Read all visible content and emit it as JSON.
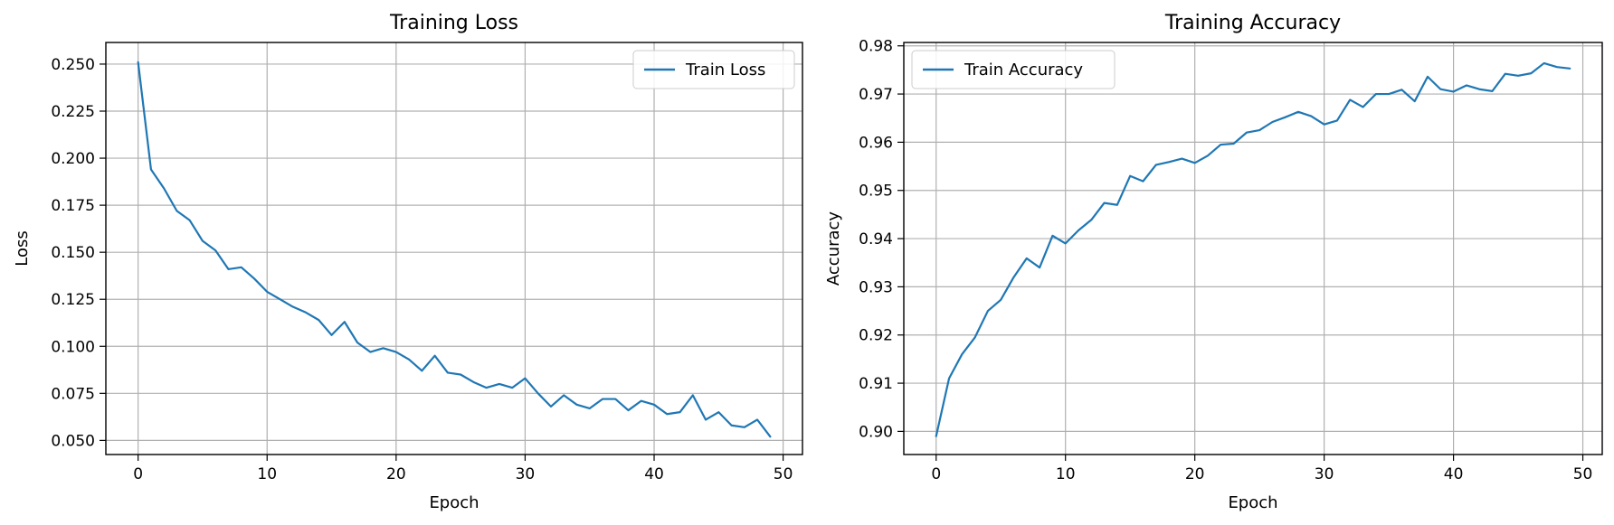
{
  "chart_data": [
    {
      "type": "line",
      "title": "Training Loss",
      "xlabel": "Epoch",
      "ylabel": "Loss",
      "xlim": [
        -2.5,
        51.5
      ],
      "ylim": [
        0.0425,
        0.2615
      ],
      "xticks": [
        0,
        10,
        20,
        30,
        40,
        50
      ],
      "xtick_labels": [
        "0",
        "10",
        "20",
        "30",
        "40",
        "50"
      ],
      "yticks": [
        0.05,
        0.075,
        0.1,
        0.125,
        0.15,
        0.175,
        0.2,
        0.225,
        0.25
      ],
      "ytick_labels": [
        "0.050",
        "0.075",
        "0.100",
        "0.125",
        "0.150",
        "0.175",
        "0.200",
        "0.225",
        "0.250"
      ],
      "grid": true,
      "legend_position": "upper right",
      "color": "#1f77b4",
      "x": [
        0,
        1,
        2,
        3,
        4,
        5,
        6,
        7,
        8,
        9,
        10,
        11,
        12,
        13,
        14,
        15,
        16,
        17,
        18,
        19,
        20,
        21,
        22,
        23,
        24,
        25,
        26,
        27,
        28,
        29,
        30,
        31,
        32,
        33,
        34,
        35,
        36,
        37,
        38,
        39,
        40,
        41,
        42,
        43,
        44,
        45,
        46,
        47,
        48,
        49
      ],
      "series": [
        {
          "name": "Train Loss",
          "values": [
            0.251,
            0.194,
            0.184,
            0.172,
            0.167,
            0.156,
            0.151,
            0.141,
            0.142,
            0.136,
            0.129,
            0.125,
            0.121,
            0.118,
            0.114,
            0.106,
            0.113,
            0.102,
            0.097,
            0.099,
            0.097,
            0.093,
            0.087,
            0.095,
            0.086,
            0.085,
            0.081,
            0.078,
            0.08,
            0.078,
            0.083,
            0.075,
            0.068,
            0.074,
            0.069,
            0.067,
            0.072,
            0.072,
            0.066,
            0.071,
            0.069,
            0.064,
            0.065,
            0.074,
            0.061,
            0.065,
            0.058,
            0.057,
            0.061,
            0.052
          ]
        }
      ]
    },
    {
      "type": "line",
      "title": "Training Accuracy",
      "xlabel": "Epoch",
      "ylabel": "Accuracy",
      "xlim": [
        -2.5,
        51.5
      ],
      "ylim": [
        0.8952,
        0.9807
      ],
      "xticks": [
        0,
        10,
        20,
        30,
        40,
        50
      ],
      "xtick_labels": [
        "0",
        "10",
        "20",
        "30",
        "40",
        "50"
      ],
      "yticks": [
        0.9,
        0.91,
        0.92,
        0.93,
        0.94,
        0.95,
        0.96,
        0.97,
        0.98
      ],
      "ytick_labels": [
        "0.90",
        "0.91",
        "0.92",
        "0.93",
        "0.94",
        "0.95",
        "0.96",
        "0.97",
        "0.98"
      ],
      "grid": true,
      "legend_position": "upper left",
      "color": "#1f77b4",
      "x": [
        0,
        1,
        2,
        3,
        4,
        5,
        6,
        7,
        8,
        9,
        10,
        11,
        12,
        13,
        14,
        15,
        16,
        17,
        18,
        19,
        20,
        21,
        22,
        23,
        24,
        25,
        26,
        27,
        28,
        29,
        30,
        31,
        32,
        33,
        34,
        35,
        36,
        37,
        38,
        39,
        40,
        41,
        42,
        43,
        44,
        45,
        46,
        47,
        48,
        49
      ],
      "series": [
        {
          "name": "Train Accuracy",
          "values": [
            0.899,
            0.911,
            0.916,
            0.9195,
            0.925,
            0.9273,
            0.932,
            0.9359,
            0.934,
            0.9406,
            0.939,
            0.9417,
            0.9439,
            0.9474,
            0.947,
            0.953,
            0.9519,
            0.9553,
            0.9559,
            0.9566,
            0.9557,
            0.9572,
            0.9595,
            0.9597,
            0.962,
            0.9625,
            0.9642,
            0.9652,
            0.9663,
            0.9654,
            0.9637,
            0.9645,
            0.9688,
            0.9673,
            0.97,
            0.97,
            0.9709,
            0.9685,
            0.9736,
            0.971,
            0.9705,
            0.9718,
            0.971,
            0.9706,
            0.9742,
            0.9738,
            0.9743,
            0.9764,
            0.9756,
            0.9753
          ]
        }
      ]
    }
  ]
}
